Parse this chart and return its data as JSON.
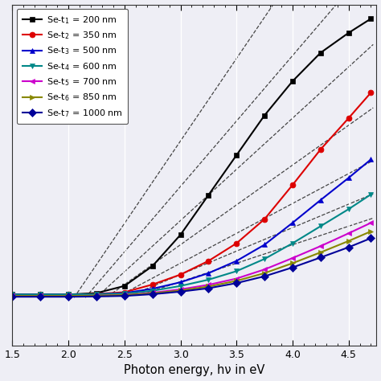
{
  "xlabel": "Photon energy, hν in eV",
  "xlim": [
    1.5,
    4.75
  ],
  "ylim": [
    -0.15,
    1.05
  ],
  "xticks": [
    1.5,
    2.0,
    2.5,
    3.0,
    3.5,
    4.0,
    4.5
  ],
  "background_color": "#eeeef5",
  "grid_color": "#ffffff",
  "series": [
    {
      "label": "Se-t$_1$ = 200 nm",
      "color": "#000000",
      "marker": "s",
      "x": [
        1.5,
        1.75,
        2.0,
        2.25,
        2.5,
        2.75,
        3.0,
        3.25,
        3.5,
        3.75,
        4.0,
        4.25,
        4.5,
        4.7
      ],
      "y": [
        0.03,
        0.03,
        0.03,
        0.035,
        0.06,
        0.13,
        0.24,
        0.38,
        0.52,
        0.66,
        0.78,
        0.88,
        0.95,
        1.0
      ]
    },
    {
      "label": "Se-t$_2$ = 350 nm",
      "color": "#dd0000",
      "marker": "o",
      "x": [
        1.5,
        1.75,
        2.0,
        2.25,
        2.5,
        2.75,
        3.0,
        3.25,
        3.5,
        3.75,
        4.0,
        4.25,
        4.5,
        4.7
      ],
      "y": [
        0.03,
        0.03,
        0.03,
        0.032,
        0.038,
        0.065,
        0.1,
        0.148,
        0.21,
        0.295,
        0.415,
        0.54,
        0.65,
        0.74
      ]
    },
    {
      "label": "Se-t$_3$ = 500 nm",
      "color": "#0000cc",
      "marker": "^",
      "x": [
        1.5,
        1.75,
        2.0,
        2.25,
        2.5,
        2.75,
        3.0,
        3.25,
        3.5,
        3.75,
        4.0,
        4.25,
        4.5,
        4.7
      ],
      "y": [
        0.03,
        0.03,
        0.03,
        0.031,
        0.035,
        0.05,
        0.073,
        0.105,
        0.148,
        0.205,
        0.282,
        0.362,
        0.44,
        0.505
      ]
    },
    {
      "label": "Se-t$_4$ = 600 nm",
      "color": "#008888",
      "marker": "v",
      "x": [
        1.5,
        1.75,
        2.0,
        2.25,
        2.5,
        2.75,
        3.0,
        3.25,
        3.5,
        3.75,
        4.0,
        4.25,
        4.5,
        4.7
      ],
      "y": [
        0.03,
        0.03,
        0.03,
        0.031,
        0.033,
        0.043,
        0.06,
        0.082,
        0.112,
        0.155,
        0.21,
        0.27,
        0.33,
        0.382
      ]
    },
    {
      "label": "Se-t$_5$ = 700 nm",
      "color": "#cc00cc",
      "marker": "<",
      "x": [
        1.5,
        1.75,
        2.0,
        2.25,
        2.5,
        2.75,
        3.0,
        3.25,
        3.5,
        3.75,
        4.0,
        4.25,
        4.5,
        4.7
      ],
      "y": [
        0.025,
        0.025,
        0.025,
        0.026,
        0.028,
        0.036,
        0.048,
        0.064,
        0.086,
        0.118,
        0.158,
        0.2,
        0.245,
        0.282
      ]
    },
    {
      "label": "Se-t$_6$ = 850 nm",
      "color": "#888800",
      "marker": ">",
      "x": [
        1.5,
        1.75,
        2.0,
        2.25,
        2.5,
        2.75,
        3.0,
        3.25,
        3.5,
        3.75,
        4.0,
        4.25,
        4.5,
        4.7
      ],
      "y": [
        0.025,
        0.025,
        0.025,
        0.026,
        0.028,
        0.034,
        0.044,
        0.058,
        0.078,
        0.105,
        0.14,
        0.178,
        0.218,
        0.252
      ]
    },
    {
      "label": "Se-t$_7$ = 1000 nm",
      "color": "#000099",
      "marker": "D",
      "x": [
        1.5,
        1.75,
        2.0,
        2.25,
        2.5,
        2.75,
        3.0,
        3.25,
        3.5,
        3.75,
        4.0,
        4.25,
        4.5,
        4.7
      ],
      "y": [
        0.022,
        0.022,
        0.022,
        0.023,
        0.025,
        0.031,
        0.04,
        0.052,
        0.07,
        0.094,
        0.125,
        0.16,
        0.196,
        0.228
      ]
    }
  ],
  "dashed_lines": [
    {
      "x_start": 2.05,
      "x_end": 4.72,
      "slope": 0.58,
      "intercept": -1.17
    },
    {
      "x_start": 2.15,
      "x_end": 4.72,
      "slope": 0.46,
      "intercept": -0.97
    },
    {
      "x_start": 2.25,
      "x_end": 4.72,
      "slope": 0.36,
      "intercept": -0.79
    },
    {
      "x_start": 2.35,
      "x_end": 4.72,
      "slope": 0.28,
      "intercept": -0.635
    },
    {
      "x_start": 2.45,
      "x_end": 4.72,
      "slope": 0.21,
      "intercept": -0.49
    },
    {
      "x_start": 2.55,
      "x_end": 4.72,
      "slope": 0.165,
      "intercept": -0.395
    },
    {
      "x_start": 2.65,
      "x_end": 4.72,
      "slope": 0.13,
      "intercept": -0.315
    }
  ]
}
